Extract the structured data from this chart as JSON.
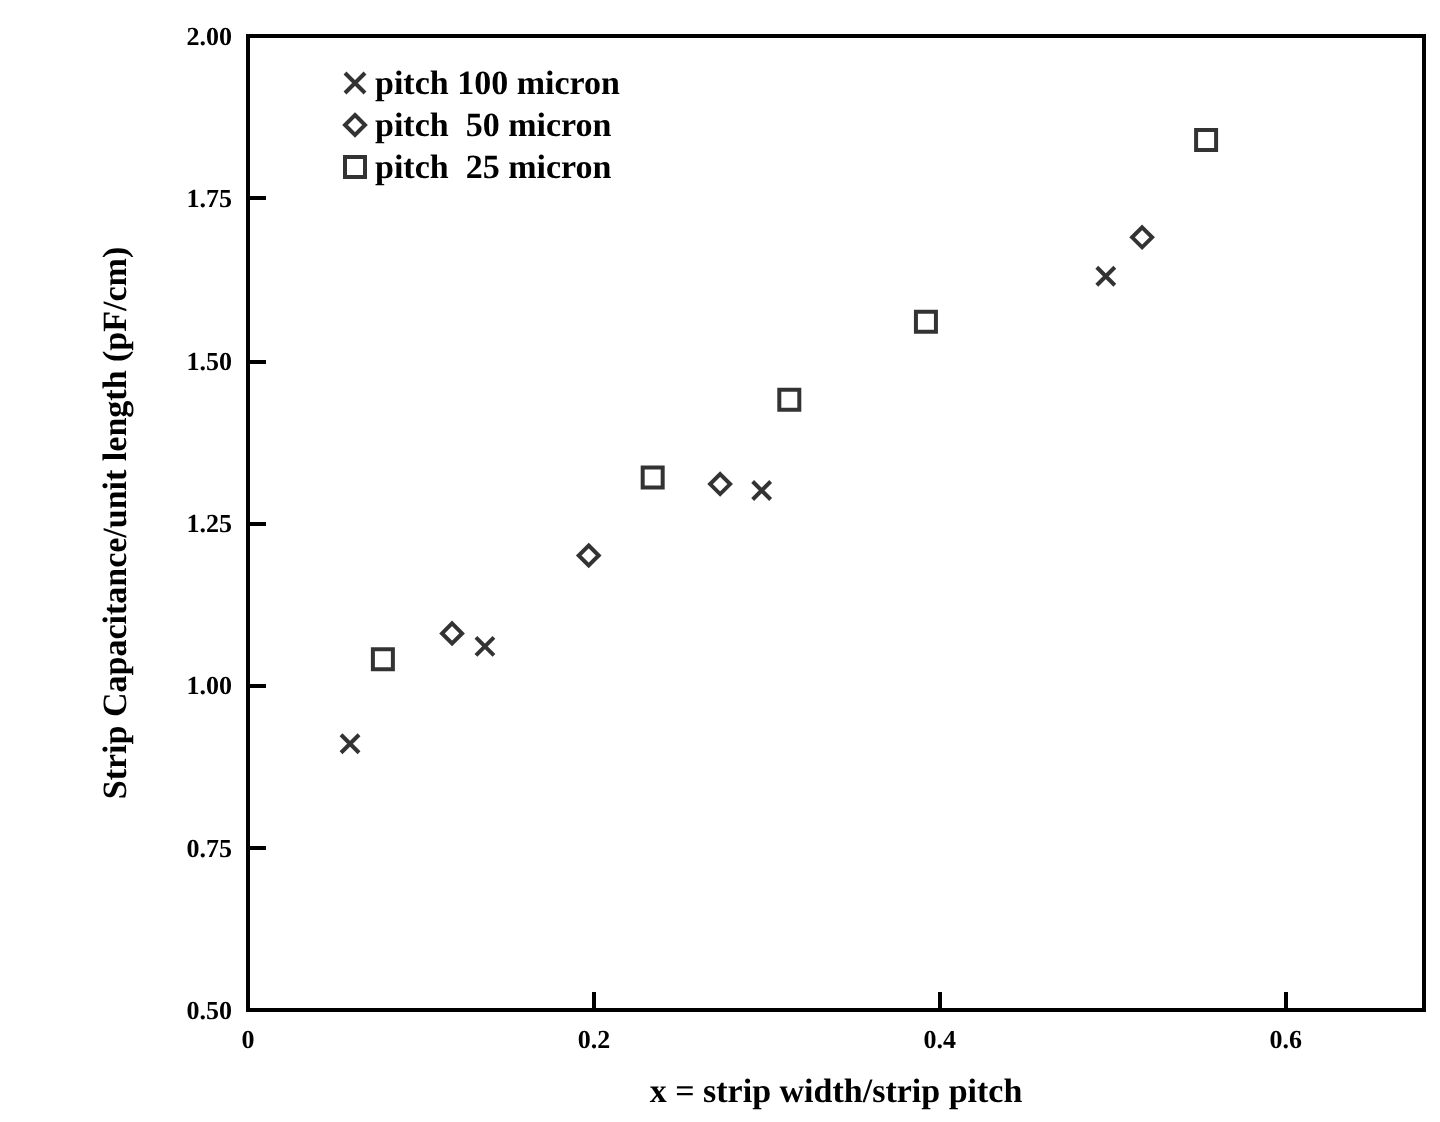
{
  "chart_data": {
    "type": "scatter",
    "xlabel": "x = strip width/strip pitch",
    "ylabel": "Strip Capacitance/unit length (pF/cm)",
    "series": [
      {
        "name": "pitch 100 micron",
        "color": "#000000",
        "marker": "cross",
        "x": [
          0.059,
          0.137,
          0.297,
          0.496
        ],
        "values": [
          0.91,
          1.06,
          1.3,
          1.63
        ]
      },
      {
        "name": "pitch  50 micron",
        "color": "#000000",
        "marker": "diamond",
        "x": [
          0.118,
          0.197,
          0.273,
          0.517
        ],
        "values": [
          1.08,
          1.2,
          1.31,
          1.69
        ]
      },
      {
        "name": "pitch  25 micron",
        "color": "#000000",
        "marker": "square",
        "x": [
          0.078,
          0.234,
          0.313,
          0.392,
          0.554
        ],
        "values": [
          1.04,
          1.32,
          1.44,
          1.56,
          1.84
        ]
      }
    ],
    "xlim": [
      0,
      0.68
    ],
    "xticks": [
      0,
      0.2,
      0.4,
      0.6
    ],
    "ylim": [
      0.5,
      2.0
    ],
    "yticks": [
      {
        "value": 0.5,
        "label": "0.50"
      },
      {
        "value": 0.75,
        "label": "0.75"
      },
      {
        "value": 1.0,
        "label": "1.00"
      },
      {
        "value": 1.25,
        "label": "1.25"
      },
      {
        "value": 1.5,
        "label": "1.50"
      },
      {
        "value": 1.75,
        "label": "1.75"
      },
      {
        "value": 2.0,
        "label": "2.00"
      }
    ],
    "grid": false,
    "legend": "top left"
  }
}
